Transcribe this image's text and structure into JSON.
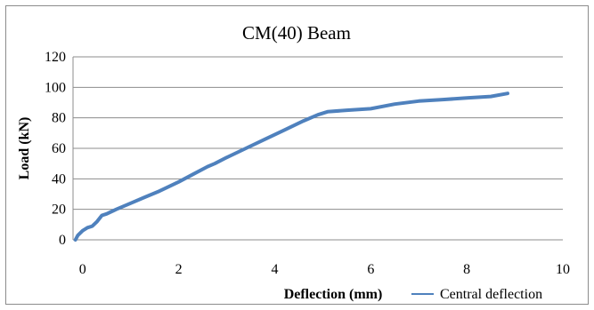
{
  "chart_data": {
    "type": "line",
    "title": "CM(40) Beam",
    "xlabel": "Deflection (mm)",
    "ylabel": "Load (kN)",
    "xlim": [
      -0.2,
      10
    ],
    "ylim": [
      0,
      120
    ],
    "x_ticks": [
      0,
      2,
      4,
      6,
      8,
      10
    ],
    "y_ticks": [
      0,
      20,
      40,
      60,
      80,
      100,
      120
    ],
    "grid": "horizontal",
    "legend": "bottom-right",
    "series": [
      {
        "name": "Central deflection",
        "color": "#4f81bd",
        "points": [
          [
            -0.15,
            0
          ],
          [
            -0.1,
            3
          ],
          [
            0,
            6
          ],
          [
            0.1,
            8
          ],
          [
            0.2,
            9
          ],
          [
            0.3,
            12
          ],
          [
            0.4,
            16
          ],
          [
            0.5,
            17
          ],
          [
            0.7,
            20
          ],
          [
            1.0,
            24
          ],
          [
            1.3,
            28
          ],
          [
            1.6,
            32
          ],
          [
            2.0,
            38
          ],
          [
            2.3,
            43
          ],
          [
            2.6,
            48
          ],
          [
            2.75,
            50
          ],
          [
            3.0,
            54
          ],
          [
            3.4,
            60
          ],
          [
            3.8,
            66
          ],
          [
            4.2,
            72
          ],
          [
            4.6,
            78
          ],
          [
            4.9,
            82
          ],
          [
            5.1,
            84
          ],
          [
            5.5,
            85
          ],
          [
            6.0,
            86
          ],
          [
            6.5,
            89
          ],
          [
            7.0,
            91
          ],
          [
            7.5,
            92
          ],
          [
            8.0,
            93
          ],
          [
            8.5,
            94
          ],
          [
            8.85,
            96
          ]
        ]
      }
    ]
  }
}
